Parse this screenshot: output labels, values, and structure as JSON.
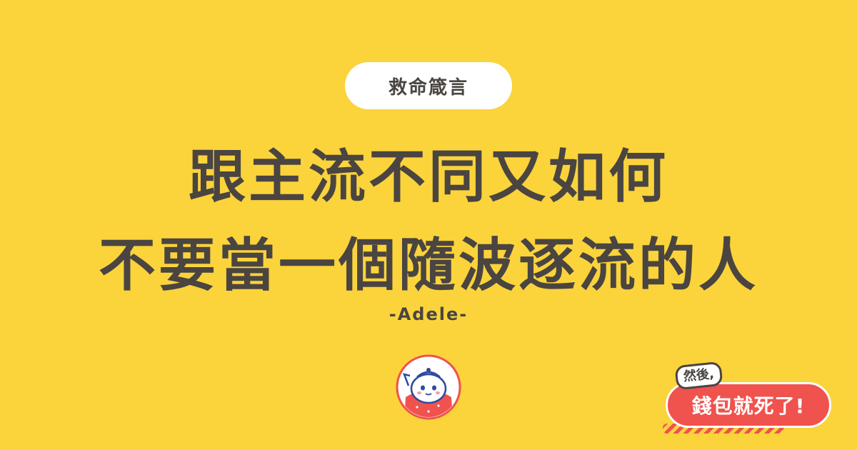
{
  "tag": {
    "label": "救命箴言"
  },
  "quote": {
    "line1": "跟主流不同又如何",
    "line2": "不要當一個隨波逐流的人"
  },
  "author": "-Adele-",
  "brand": {
    "small": "然後,",
    "main": "錢包就死了!"
  },
  "colors": {
    "background": "#fbd33b",
    "text": "#4a4541",
    "accent": "#f0524d"
  },
  "icons": {
    "mascot": "wallet-mascot-icon"
  }
}
